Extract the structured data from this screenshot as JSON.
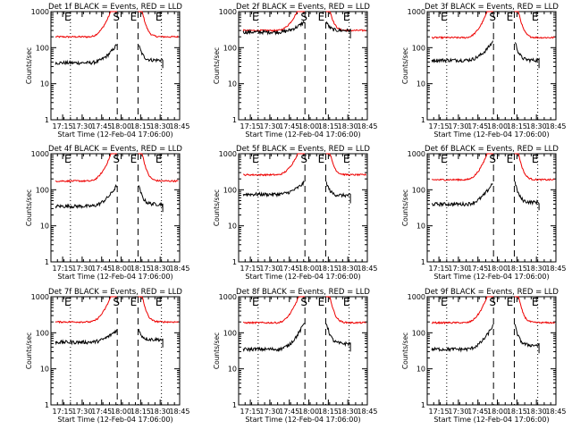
{
  "chart_data": {
    "type": "line",
    "y_scale": "log",
    "ylim": [
      1,
      1000
    ],
    "y_tick_labels": [
      "1",
      "10",
      "100",
      "1000"
    ],
    "x_tick_labels": [
      "17:15",
      "17:30",
      "17:45",
      "18:00",
      "18:15",
      "18:30",
      "18:45"
    ],
    "x_label": "Start Time (12-Feb-04 17:06:00)",
    "y_label": "Counts/sec",
    "x_range_min": [
      6,
      105
    ],
    "x_tick_min": [
      15,
      30,
      45,
      60,
      75,
      90,
      105
    ],
    "markers": [
      {
        "label": "S",
        "x_min": 57,
        "style": "dashed"
      },
      {
        "label": "E",
        "x_min": 73,
        "style": "dashed"
      },
      {
        "label": "E",
        "x_min": 21,
        "style": "dotted"
      },
      {
        "label": "E",
        "x_min": 91,
        "style": "dotted"
      }
    ],
    "colors": {
      "events": "#000000",
      "lld": "#ee0000"
    },
    "panels": [
      {
        "title": "Det 1f BLACK = Events, RED = LLD",
        "red_base": 200,
        "black_base": 38,
        "black_end": 45,
        "black_peak": 120
      },
      {
        "title": "Det 2f BLACK = Events, RED = LLD",
        "red_base": 300,
        "black_base": 270,
        "black_end": 300,
        "black_peak": 520
      },
      {
        "title": "Det 3f BLACK = Events, RED = LLD",
        "red_base": 190,
        "black_base": 45,
        "black_end": 45,
        "black_peak": 150
      },
      {
        "title": "Det 4f BLACK = Events, RED = LLD",
        "red_base": 175,
        "black_base": 35,
        "black_end": 40,
        "black_peak": 130
      },
      {
        "title": "Det 5f BLACK = Events, RED = LLD",
        "red_base": 260,
        "black_base": 75,
        "black_end": 70,
        "black_peak": 160
      },
      {
        "title": "Det 6f BLACK = Events, RED = LLD",
        "red_base": 190,
        "black_base": 40,
        "black_end": 45,
        "black_peak": 160
      },
      {
        "title": "Det 7f BLACK = Events, RED = LLD",
        "red_base": 200,
        "black_base": 55,
        "black_end": 65,
        "black_peak": 120
      },
      {
        "title": "Det 8f BLACK = Events, RED = LLD",
        "red_base": 190,
        "black_base": 35,
        "black_end": 50,
        "black_peak": 190
      },
      {
        "title": "Det 9f BLACK = Events, RED = LLD",
        "red_base": 190,
        "black_base": 35,
        "black_end": 45,
        "black_peak": 160
      }
    ]
  }
}
